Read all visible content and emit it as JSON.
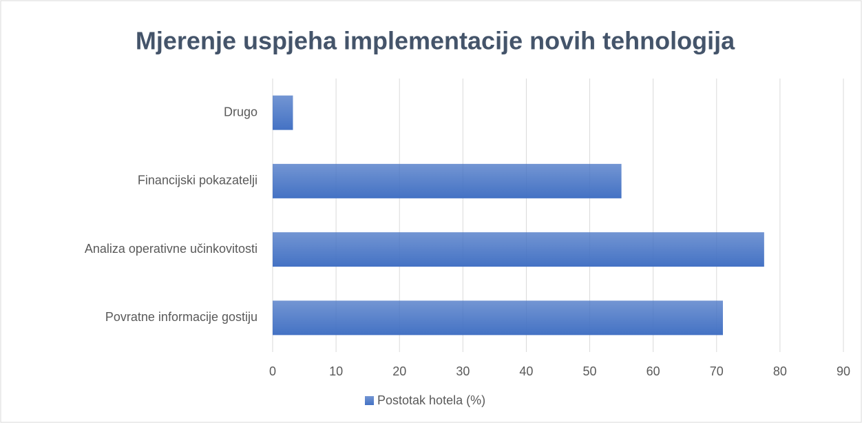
{
  "chart_data": {
    "type": "bar",
    "orientation": "horizontal",
    "title": "Mjerenje uspjeha implementacije novih tehnologija",
    "categories": [
      "Drugo",
      "Financijski pokazatelji",
      "Analiza operativne učinkovitosti",
      "Povratne informacije gostiju"
    ],
    "series": [
      {
        "name": "Postotak hotela (%)",
        "color": "#4472c4",
        "values": [
          3.2,
          55,
          77.5,
          71
        ]
      }
    ],
    "xlim": [
      0,
      90
    ],
    "xticks": [
      0,
      10,
      20,
      30,
      40,
      50,
      60,
      70,
      80,
      90
    ],
    "grid": true,
    "legend": "bottom"
  }
}
